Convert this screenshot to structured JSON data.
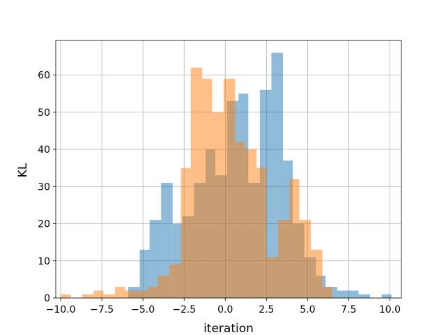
{
  "chart_data": {
    "type": "bar",
    "title": "",
    "xlabel": "iteration",
    "ylabel": "KL",
    "xlim": [
      -10.3,
      10.7
    ],
    "ylim": [
      0,
      69.3
    ],
    "x_ticks": [
      -10.0,
      -7.5,
      -5.0,
      -2.5,
      0.0,
      2.5,
      5.0,
      7.5,
      10.0
    ],
    "x_tick_labels": [
      "−10.0",
      "−7.5",
      "−5.0",
      "−2.5",
      "0.0",
      "2.5",
      "5.0",
      "7.5",
      "10.0"
    ],
    "y_ticks": [
      0,
      10,
      20,
      30,
      40,
      50,
      60
    ],
    "y_tick_labels": [
      "0",
      "10",
      "20",
      "30",
      "40",
      "50",
      "60"
    ],
    "grid": true,
    "legend": "none",
    "series": [
      {
        "color": "#1f77b4",
        "alpha": 0.5,
        "bins": [
          {
            "x0": -5.9,
            "x1": -5.2,
            "count": 3
          },
          {
            "x0": -5.2,
            "x1": -4.6,
            "count": 13
          },
          {
            "x0": -4.6,
            "x1": -3.9,
            "count": 21
          },
          {
            "x0": -3.9,
            "x1": -3.2,
            "count": 31
          },
          {
            "x0": -3.2,
            "x1": -2.6,
            "count": 20
          },
          {
            "x0": -2.6,
            "x1": -1.9,
            "count": 22
          },
          {
            "x0": -1.9,
            "x1": -1.2,
            "count": 31
          },
          {
            "x0": -1.2,
            "x1": -0.6,
            "count": 40
          },
          {
            "x0": -0.6,
            "x1": 0.1,
            "count": 33
          },
          {
            "x0": 0.1,
            "x1": 0.8,
            "count": 53
          },
          {
            "x0": 0.8,
            "x1": 1.4,
            "count": 55
          },
          {
            "x0": 1.4,
            "x1": 2.1,
            "count": 31
          },
          {
            "x0": 2.1,
            "x1": 2.8,
            "count": 56
          },
          {
            "x0": 2.8,
            "x1": 3.5,
            "count": 66
          },
          {
            "x0": 3.5,
            "x1": 4.1,
            "count": 37
          },
          {
            "x0": 4.1,
            "x1": 4.8,
            "count": 20
          },
          {
            "x0": 4.8,
            "x1": 5.5,
            "count": 11
          },
          {
            "x0": 5.5,
            "x1": 6.1,
            "count": 6
          },
          {
            "x0": 6.1,
            "x1": 6.8,
            "count": 3
          },
          {
            "x0": 6.8,
            "x1": 7.5,
            "count": 2
          },
          {
            "x0": 7.5,
            "x1": 8.1,
            "count": 2
          },
          {
            "x0": 8.1,
            "x1": 8.8,
            "count": 1
          },
          {
            "x0": 8.8,
            "x1": 9.5,
            "count": 0
          },
          {
            "x0": 9.5,
            "x1": 10.1,
            "count": 1
          }
        ]
      },
      {
        "color": "#ff7f0e",
        "alpha": 0.5,
        "bins": [
          {
            "x0": -10.0,
            "x1": -9.4,
            "count": 1
          },
          {
            "x0": -9.4,
            "x1": -8.7,
            "count": 0
          },
          {
            "x0": -8.7,
            "x1": -8.0,
            "count": 1
          },
          {
            "x0": -8.0,
            "x1": -7.4,
            "count": 2
          },
          {
            "x0": -7.4,
            "x1": -6.7,
            "count": 1
          },
          {
            "x0": -6.7,
            "x1": -6.1,
            "count": 3
          },
          {
            "x0": -6.1,
            "x1": -5.4,
            "count": 2
          },
          {
            "x0": -5.4,
            "x1": -4.7,
            "count": 2
          },
          {
            "x0": -4.7,
            "x1": -4.1,
            "count": 3
          },
          {
            "x0": -4.1,
            "x1": -3.4,
            "count": 6
          },
          {
            "x0": -3.4,
            "x1": -2.7,
            "count": 9
          },
          {
            "x0": -2.7,
            "x1": -2.1,
            "count": 35
          },
          {
            "x0": -2.1,
            "x1": -1.4,
            "count": 62
          },
          {
            "x0": -1.4,
            "x1": -0.8,
            "count": 59
          },
          {
            "x0": -0.8,
            "x1": -0.1,
            "count": 50
          },
          {
            "x0": -0.1,
            "x1": 0.6,
            "count": 59
          },
          {
            "x0": 0.6,
            "x1": 1.2,
            "count": 42
          },
          {
            "x0": 1.2,
            "x1": 1.9,
            "count": 40
          },
          {
            "x0": 1.9,
            "x1": 2.5,
            "count": 35
          },
          {
            "x0": 2.5,
            "x1": 3.2,
            "count": 11
          },
          {
            "x0": 3.2,
            "x1": 3.9,
            "count": 21
          },
          {
            "x0": 3.9,
            "x1": 4.5,
            "count": 32
          },
          {
            "x0": 4.5,
            "x1": 5.2,
            "count": 21
          },
          {
            "x0": 5.2,
            "x1": 5.9,
            "count": 13
          },
          {
            "x0": 5.9,
            "x1": 6.5,
            "count": 3
          }
        ]
      }
    ]
  }
}
